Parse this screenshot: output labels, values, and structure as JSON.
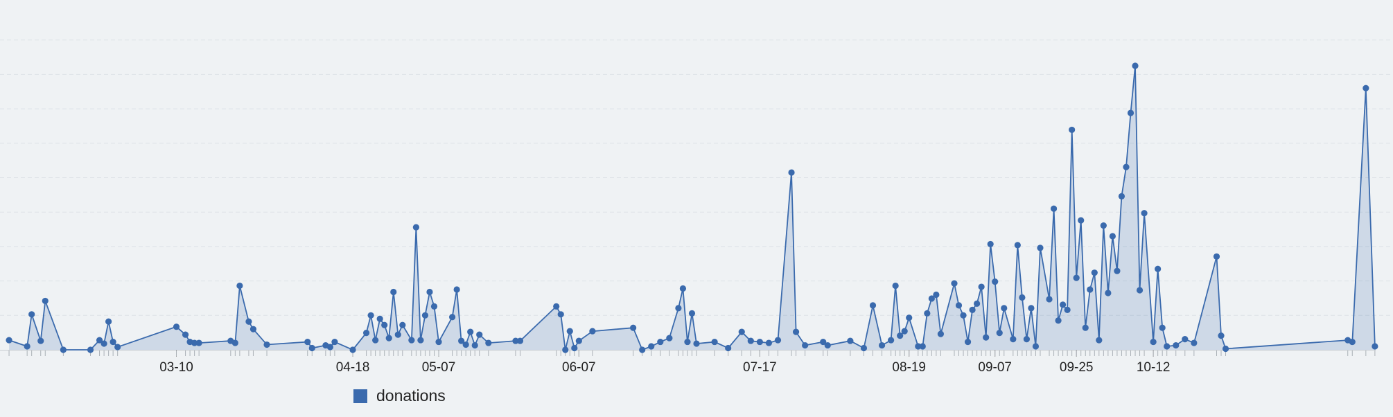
{
  "chart_data": {
    "type": "area",
    "x": [
      "02-01",
      "02-05",
      "02-06",
      "02-08",
      "02-09",
      "02-13",
      "02-19",
      "02-21",
      "02-22",
      "02-23",
      "02-24",
      "02-25",
      "03-10",
      "03-12",
      "03-13",
      "03-14",
      "03-15",
      "03-22",
      "03-23",
      "03-24",
      "03-26",
      "03-27",
      "03-30",
      "04-08",
      "04-09",
      "04-12",
      "04-13",
      "04-14",
      "04-18",
      "04-21",
      "04-22",
      "04-23",
      "04-24",
      "04-25",
      "04-26",
      "04-27",
      "04-28",
      "04-29",
      "05-01",
      "05-02",
      "05-03",
      "05-04",
      "05-05",
      "05-06",
      "05-07",
      "05-10",
      "05-11",
      "05-12",
      "05-13",
      "05-14",
      "05-15",
      "05-16",
      "05-18",
      "05-24",
      "05-25",
      "06-02",
      "06-03",
      "06-04",
      "06-05",
      "06-06",
      "06-07",
      "06-10",
      "06-19",
      "06-21",
      "06-23",
      "06-25",
      "06-27",
      "06-29",
      "06-30",
      "07-01",
      "07-02",
      "07-03",
      "07-07",
      "07-10",
      "07-13",
      "07-15",
      "07-17",
      "07-19",
      "07-21",
      "07-24",
      "07-25",
      "07-27",
      "07-31",
      "08-01",
      "08-06",
      "08-09",
      "08-11",
      "08-13",
      "08-15",
      "08-16",
      "08-17",
      "08-18",
      "08-19",
      "08-21",
      "08-22",
      "08-23",
      "08-24",
      "08-25",
      "08-26",
      "08-29",
      "08-30",
      "08-31",
      "09-01",
      "09-02",
      "09-03",
      "09-04",
      "09-05",
      "09-06",
      "09-07",
      "09-08",
      "09-09",
      "09-11",
      "09-12",
      "09-13",
      "09-14",
      "09-15",
      "09-16",
      "09-17",
      "09-19",
      "09-20",
      "09-21",
      "09-22",
      "09-23",
      "09-24",
      "09-25",
      "09-26",
      "09-27",
      "09-28",
      "09-29",
      "09-30",
      "10-01",
      "10-02",
      "10-03",
      "10-04",
      "10-05",
      "10-06",
      "10-07",
      "10-08",
      "10-09",
      "10-10",
      "10-12",
      "10-13",
      "10-14",
      "10-15",
      "10-17",
      "10-19",
      "10-21",
      "10-26",
      "10-27",
      "10-28",
      "11-24",
      "11-25",
      "11-28",
      "11-30"
    ],
    "series": [
      {
        "name": "donations",
        "color": "#3a6aad",
        "values": [
          0.28,
          0.1,
          1.03,
          0.26,
          1.42,
          0,
          0,
          0.28,
          0.18,
          0.82,
          0.23,
          0.08,
          0.67,
          0.44,
          0.23,
          0.2,
          0.2,
          0.26,
          0.2,
          1.86,
          0.82,
          0.6,
          0.15,
          0.23,
          0.05,
          0.13,
          0.08,
          0.23,
          0,
          0.49,
          1.0,
          0.28,
          0.9,
          0.72,
          0.34,
          1.68,
          0.44,
          0.72,
          0.28,
          3.56,
          0.28,
          1.0,
          1.68,
          1.26,
          0.23,
          0.95,
          1.75,
          0.26,
          0.15,
          0.52,
          0.13,
          0.44,
          0.2,
          0.26,
          0.26,
          1.26,
          1.03,
          0,
          0.54,
          0.05,
          0.26,
          0.54,
          0.64,
          0,
          0.1,
          0.23,
          0.34,
          1.21,
          1.78,
          0.23,
          1.06,
          0.18,
          0.23,
          0.05,
          0.52,
          0.26,
          0.23,
          0.2,
          0.28,
          5.15,
          0.52,
          0.13,
          0.23,
          0.13,
          0.26,
          0.05,
          1.29,
          0.13,
          0.28,
          1.86,
          0.41,
          0.54,
          0.93,
          0.1,
          0.1,
          1.06,
          1.49,
          1.6,
          0.46,
          1.93,
          1.29,
          1.0,
          0.23,
          1.16,
          1.34,
          1.83,
          0.36,
          3.07,
          1.98,
          0.49,
          1.21,
          0.31,
          3.04,
          1.52,
          0.31,
          1.21,
          0.1,
          2.96,
          1.47,
          4.1,
          0.85,
          1.31,
          1.16,
          6.39,
          2.09,
          3.76,
          0.64,
          1.75,
          2.24,
          0.28,
          3.61,
          1.65,
          3.3,
          2.29,
          4.46,
          5.31,
          6.88,
          8.25,
          1.73,
          3.97,
          0.23,
          2.35,
          0.64,
          0.1,
          0.13,
          0.31,
          0.2,
          2.71,
          0.41,
          0.03,
          0.28,
          0.23,
          7.6,
          0.1
        ]
      }
    ],
    "xlim": [
      "01-30",
      "12-04"
    ],
    "xticks": [
      "03-10",
      "04-18",
      "05-07",
      "06-07",
      "07-17",
      "08-19",
      "09-07",
      "09-25",
      "10-12"
    ],
    "ylim": [
      0,
      10
    ],
    "yticks": [
      1,
      2,
      3,
      4,
      5,
      6,
      7,
      8,
      9
    ],
    "grid": true,
    "legend": "bottom"
  }
}
